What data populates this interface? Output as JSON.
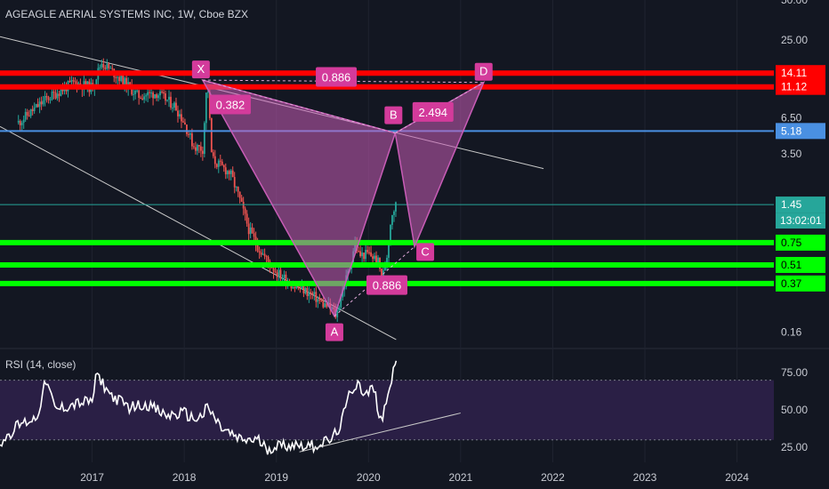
{
  "header": {
    "title": "AGEAGLE AERIAL SYSTEMS INC, 1W, Cboe BZX"
  },
  "colors": {
    "background": "#131722",
    "candle_up": "#26a69a",
    "candle_down": "#ef5350",
    "pattern_fill": "#c85cb6",
    "pattern_label": "#d33b9b",
    "resistance": "#ff0000",
    "support": "#00ff00",
    "pivot": "#4a90e2",
    "rsi_line": "#ffffff",
    "rsi_band": "#2a1f45"
  },
  "chart_data": [
    {
      "type": "line",
      "series": [
        {
          "name": "",
          "x": [
            2016.2,
            2016.5,
            2016.8,
            2017.0,
            2017.1,
            2017.3,
            2017.5,
            2017.7,
            2017.9,
            2018.0,
            2018.1,
            2018.2,
            2018.25,
            2018.3,
            2018.4,
            2018.5,
            2018.6,
            2018.7,
            2018.8,
            2018.9,
            2019.0,
            2019.1,
            2019.2,
            2019.3,
            2019.4,
            2019.5,
            2019.6,
            2019.65,
            2019.7,
            2019.8,
            2019.85,
            2019.9,
            2020.0,
            2020.1,
            2020.15,
            2020.2,
            2020.25,
            2020.3
          ],
          "values": [
            6.0,
            9.0,
            12.0,
            11.0,
            17.0,
            13.0,
            9.5,
            10.0,
            8.0,
            6.0,
            4.0,
            3.8,
            13.0,
            3.2,
            2.8,
            2.5,
            1.6,
            0.95,
            0.7,
            0.55,
            0.45,
            0.4,
            0.35,
            0.33,
            0.3,
            0.26,
            0.24,
            0.21,
            0.3,
            0.5,
            0.75,
            0.6,
            0.62,
            0.55,
            0.4,
            0.6,
            1.25,
            1.45
          ]
        }
      ],
      "y_scale": "log",
      "ylim": [
        0.12,
        50
      ],
      "xlim": [
        2016.0,
        2024.4
      ],
      "x_ticks": [
        "2017",
        "2018",
        "2019",
        "2020",
        "2021",
        "2022",
        "2023",
        "2024"
      ],
      "y_ticks": [
        "50.00",
        "25.00",
        "6.50",
        "3.50",
        "0.16"
      ],
      "levels": {
        "resistance": [
          "14.11",
          "11.12"
        ],
        "pivot": [
          "5.18"
        ],
        "support": [
          "0.75",
          "0.51",
          "0.37"
        ],
        "last_price": "1.45",
        "countdown": "13:02:01"
      },
      "pattern": {
        "points": [
          {
            "label": "X",
            "x": 2018.2,
            "y": 12.5
          },
          {
            "label": "A",
            "x": 2019.63,
            "y": 0.21
          },
          {
            "label": "B",
            "x": 2020.29,
            "y": 5.0
          },
          {
            "label": "C",
            "x": 2020.5,
            "y": 0.7
          },
          {
            "label": "D",
            "x": 2021.25,
            "y": 12.0
          }
        ],
        "ratios": [
          "0.382",
          "0.886",
          "0.886",
          "2.494"
        ]
      },
      "channel": {
        "upper": [
          [
            2016.0,
            26.5
          ],
          [
            2021.9,
            2.7
          ]
        ],
        "lower": [
          [
            2016.0,
            5.6
          ],
          [
            2020.3,
            0.14
          ]
        ]
      }
    },
    {
      "type": "line",
      "title": "RSI (14, close)",
      "series": [
        {
          "name": "",
          "x": [
            2016.0,
            2016.2,
            2016.4,
            2016.5,
            2016.6,
            2016.8,
            2017.0,
            2017.05,
            2017.2,
            2017.4,
            2017.6,
            2017.8,
            2018.0,
            2018.1,
            2018.2,
            2018.25,
            2018.4,
            2018.6,
            2018.8,
            2018.9,
            2019.0,
            2019.2,
            2019.4,
            2019.6,
            2019.7,
            2019.8,
            2019.9,
            2019.95,
            2020.0,
            2020.05,
            2020.1,
            2020.15,
            2020.2,
            2020.25,
            2020.3
          ],
          "values": [
            28,
            40,
            45,
            70,
            50,
            54,
            56,
            74,
            60,
            52,
            54,
            46,
            48,
            44,
            46,
            52,
            38,
            30,
            30,
            24,
            26,
            27,
            26,
            30,
            40,
            62,
            70,
            58,
            62,
            66,
            52,
            42,
            60,
            72,
            83
          ]
        }
      ],
      "ylim": [
        15,
        90
      ],
      "xlim": [
        2016.0,
        2024.4
      ],
      "y_ticks": [
        "75.00",
        "50.00",
        "25.00"
      ],
      "band": [
        30,
        70
      ]
    }
  ]
}
